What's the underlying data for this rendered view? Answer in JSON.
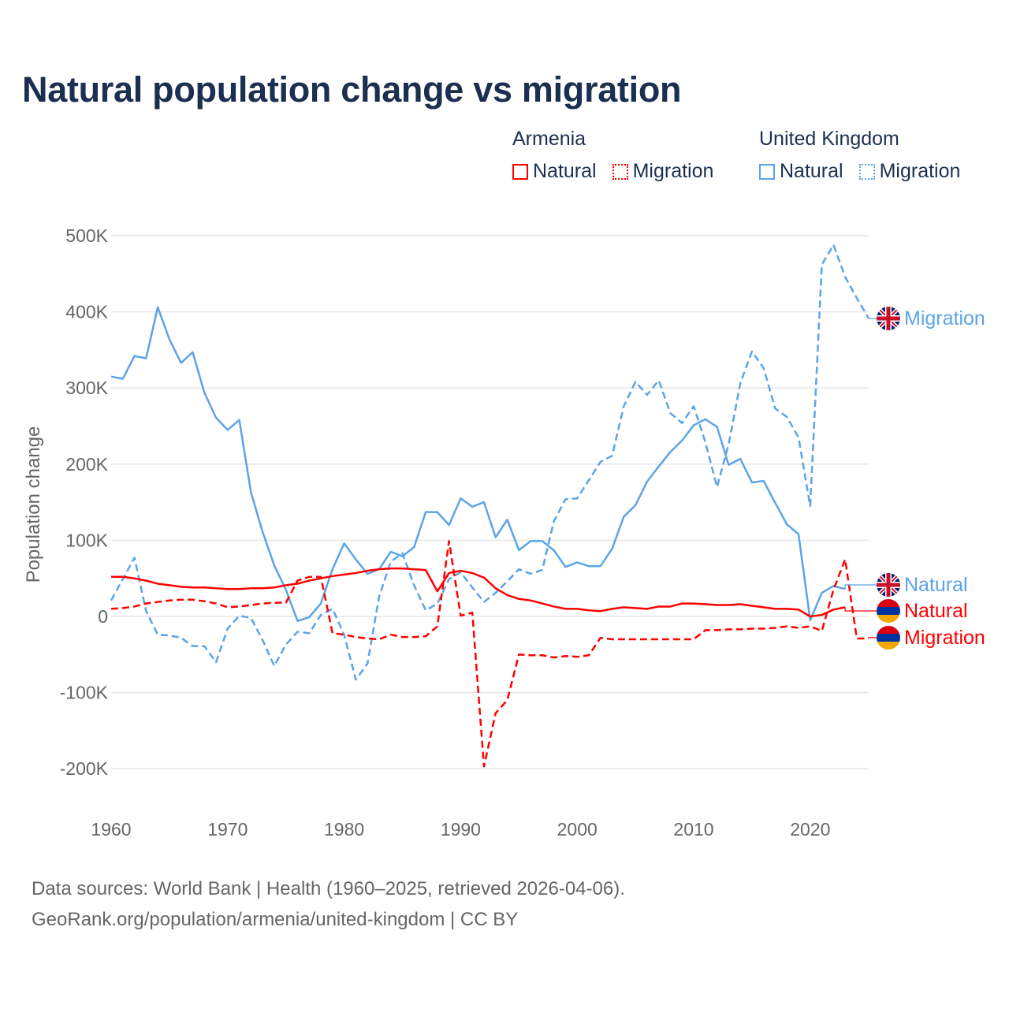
{
  "title": "Natural population change vs migration",
  "legend": {
    "groups": [
      {
        "name": "Armenia",
        "items": [
          {
            "label": "Natural",
            "style": "solid"
          },
          {
            "label": "Migration",
            "style": "dotted"
          }
        ],
        "color": "#ff0000"
      },
      {
        "name": "United Kingdom",
        "items": [
          {
            "label": "Natural",
            "style": "solid"
          },
          {
            "label": "Migration",
            "style": "dotted"
          }
        ],
        "color": "#5ba4e8"
      }
    ]
  },
  "footer": {
    "line1": "Data sources: World Bank | Health (1960–2025, retrieved 2026-04-06).",
    "line2": "GeoRank.org/population/armenia/united-kingdom | CC BY"
  },
  "chart_data": {
    "type": "line",
    "title": "Natural population change vs migration",
    "xlabel": "",
    "ylabel": "Population change",
    "xlim": [
      1960,
      2025
    ],
    "ylim": [
      -200000,
      500000
    ],
    "x_ticks": [
      1960,
      1970,
      1980,
      1990,
      2000,
      2010,
      2020
    ],
    "x_tick_labels": [
      "1960",
      "1970",
      "1980",
      "1990",
      "2000",
      "2010",
      "2020"
    ],
    "y_ticks": [
      -200000,
      -100000,
      0,
      100000,
      200000,
      300000,
      400000,
      500000
    ],
    "y_tick_labels": [
      "-200K",
      "-100K",
      "0",
      "100K",
      "200K",
      "300K",
      "400K",
      "500K"
    ],
    "grid": true,
    "start_year": 1960,
    "series": [
      {
        "name": "United Kingdom Natural",
        "end_label": "Natural",
        "country": "United Kingdom",
        "color": "#5ba4e8",
        "dashed": false,
        "values_k": [
          315,
          312,
          342,
          339,
          406,
          364,
          333,
          347,
          294,
          261,
          245,
          258,
          163,
          111,
          67,
          35,
          -6,
          -1,
          17,
          62,
          96,
          75,
          56,
          62,
          85,
          79,
          91,
          137,
          137,
          120,
          155,
          144,
          150,
          104,
          127,
          87,
          99,
          99,
          87,
          65,
          71,
          66,
          66,
          89,
          131,
          146,
          177,
          197,
          216,
          231,
          251,
          259,
          249,
          199,
          207,
          176,
          178,
          149,
          121,
          108,
          -5,
          31,
          40,
          36
        ]
      },
      {
        "name": "United Kingdom Migration",
        "end_label": "Migration",
        "country": "United Kingdom",
        "color": "#5ba4e8",
        "dashed": true,
        "values_k": [
          21,
          49,
          77,
          7,
          -24,
          -25,
          -28,
          -39,
          -39,
          -60,
          -16,
          1,
          -2,
          -31,
          -65,
          -37,
          -20,
          -22,
          2,
          10,
          -24,
          -83,
          -62,
          26,
          72,
          83,
          41,
          8,
          17,
          49,
          58,
          38,
          19,
          31,
          46,
          62,
          56,
          61,
          125,
          154,
          155,
          179,
          203,
          211,
          276,
          308,
          291,
          310,
          267,
          254,
          276,
          229,
          170,
          226,
          306,
          348,
          326,
          273,
          262,
          235,
          145,
          462,
          488,
          446,
          418,
          392
        ]
      },
      {
        "name": "Armenia Natural",
        "end_label": "Natural",
        "country": "Armenia",
        "color": "#ff0000",
        "dashed": false,
        "values_k": [
          52,
          52,
          50,
          47,
          43,
          41,
          39,
          38,
          38,
          37,
          36,
          36,
          37,
          37,
          38,
          41,
          43,
          47,
          50,
          53,
          55,
          57,
          60,
          62,
          63,
          63,
          62,
          61,
          33,
          57,
          60,
          57,
          51,
          37,
          28,
          23,
          21,
          17,
          13,
          10,
          10,
          8,
          7,
          10,
          12,
          11,
          10,
          13,
          13,
          17,
          17,
          16,
          15,
          15,
          16,
          14,
          12,
          10,
          10,
          9,
          0,
          2,
          9,
          12
        ]
      },
      {
        "name": "Armenia Migration",
        "end_label": "Migration",
        "country": "Armenia",
        "color": "#ff0000",
        "dashed": true,
        "values_k": [
          10,
          11,
          13,
          17,
          19,
          21,
          22,
          22,
          20,
          17,
          12,
          13,
          15,
          17,
          18,
          18,
          47,
          52,
          52,
          -22,
          -24,
          -27,
          -29,
          -30,
          -24,
          -27,
          -27,
          -26,
          -13,
          99,
          1,
          5,
          -197,
          -127,
          -110,
          -50,
          -51,
          -51,
          -54,
          -52,
          -53,
          -51,
          -28,
          -30,
          -30,
          -30,
          -30,
          -30,
          -30,
          -30,
          -30,
          -18,
          -18,
          -17,
          -17,
          -16,
          -16,
          -15,
          -13,
          -15,
          -13,
          -19,
          35,
          75,
          -29,
          -29
        ]
      }
    ]
  }
}
